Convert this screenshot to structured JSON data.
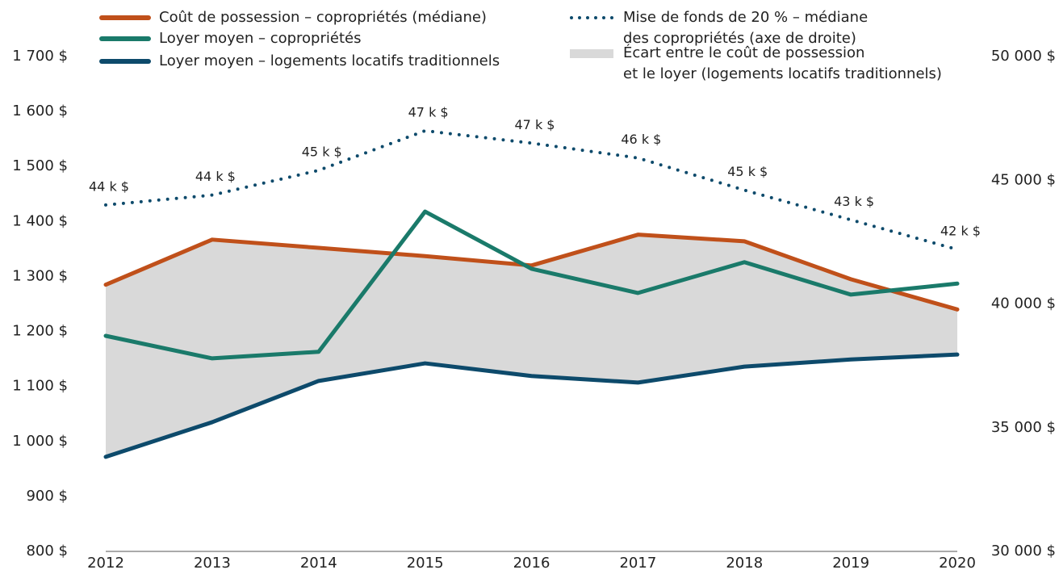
{
  "chart_data": {
    "type": "line",
    "categories": [
      "2012",
      "2013",
      "2014",
      "2015",
      "2016",
      "2017",
      "2018",
      "2019",
      "2020"
    ],
    "series": [
      {
        "name": "Coût de possession – copropriétés (médiane)",
        "color": "#c0501a",
        "values": [
          1285,
          1367,
          1352,
          1337,
          1320,
          1376,
          1364,
          1295,
          1240
        ]
      },
      {
        "name": "Loyer moyen – copropriétés",
        "color": "#1a7a6a",
        "values": [
          1192,
          1151,
          1163,
          1418,
          1314,
          1270,
          1326,
          1267,
          1287
        ]
      },
      {
        "name": "Loyer moyen – logements locatifs traditionnels",
        "color": "#0d4a6b",
        "values": [
          972,
          1035,
          1110,
          1142,
          1119,
          1107,
          1136,
          1149,
          1158
        ]
      },
      {
        "name": "Mise de fonds de 20 % – médiane\ndes copropriétés (axe de droite)",
        "color": "#0d4a6b",
        "axis": "y2",
        "dotted": true,
        "values": [
          44000,
          44400,
          45400,
          47000,
          46500,
          45900,
          44600,
          43400,
          42200
        ],
        "value_labels": [
          "44 k $",
          "44 k $",
          "45 k $",
          "47 k $",
          "47 k $",
          "46 k $",
          "45 k $",
          "43 k $",
          "42 k $"
        ]
      }
    ],
    "area": {
      "name": "Écart entre le coût de possession\net le loyer (logements locatifs traditionnels)",
      "color": "#d9d9d9"
    },
    "ylim": [
      800,
      1700
    ],
    "yticks": [
      {
        "value": 800,
        "label": "800 $"
      },
      {
        "value": 900,
        "label": "900 $"
      },
      {
        "value": 1000,
        "label": "1 000 $"
      },
      {
        "value": 1100,
        "label": "1 100 $"
      },
      {
        "value": 1200,
        "label": "1 200 $"
      },
      {
        "value": 1300,
        "label": "1 300 $"
      },
      {
        "value": 1400,
        "label": "1 400 $"
      },
      {
        "value": 1500,
        "label": "1 500 $"
      },
      {
        "value": 1600,
        "label": "1 600 $"
      },
      {
        "value": 1700,
        "label": "1 700 $"
      }
    ],
    "y2lim": [
      30000,
      50000
    ],
    "y2ticks": [
      {
        "value": 30000,
        "label": "30 000 $"
      },
      {
        "value": 35000,
        "label": "35 000 $"
      },
      {
        "value": 40000,
        "label": "40 000 $"
      },
      {
        "value": 45000,
        "label": "45 000 $"
      },
      {
        "value": 50000,
        "label": "50 000 $"
      }
    ]
  }
}
